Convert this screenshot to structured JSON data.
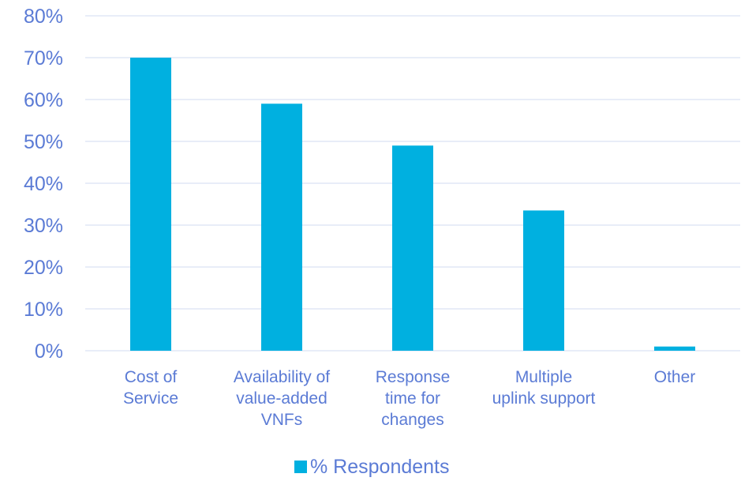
{
  "chart_data": {
    "type": "bar",
    "categories": [
      [
        "Cost of",
        "Service"
      ],
      [
        "Availability of",
        "value-added",
        "VNFs"
      ],
      [
        "Response",
        "time for",
        "changes"
      ],
      [
        "Multiple",
        "uplink support"
      ],
      [
        "Other"
      ]
    ],
    "series": [
      {
        "name": "% Respondents",
        "values": [
          70,
          59,
          49,
          33.5,
          1
        ]
      }
    ],
    "y_ticks": [
      "0%",
      "10%",
      "20%",
      "30%",
      "40%",
      "50%",
      "60%",
      "70%",
      "80%"
    ],
    "ylim": [
      0,
      80
    ],
    "grid": true,
    "legend_position": "bottom",
    "colors": {
      "bar": "#00B0E0",
      "text": "#5B7BD5",
      "grid": "#D9E2F3"
    }
  }
}
